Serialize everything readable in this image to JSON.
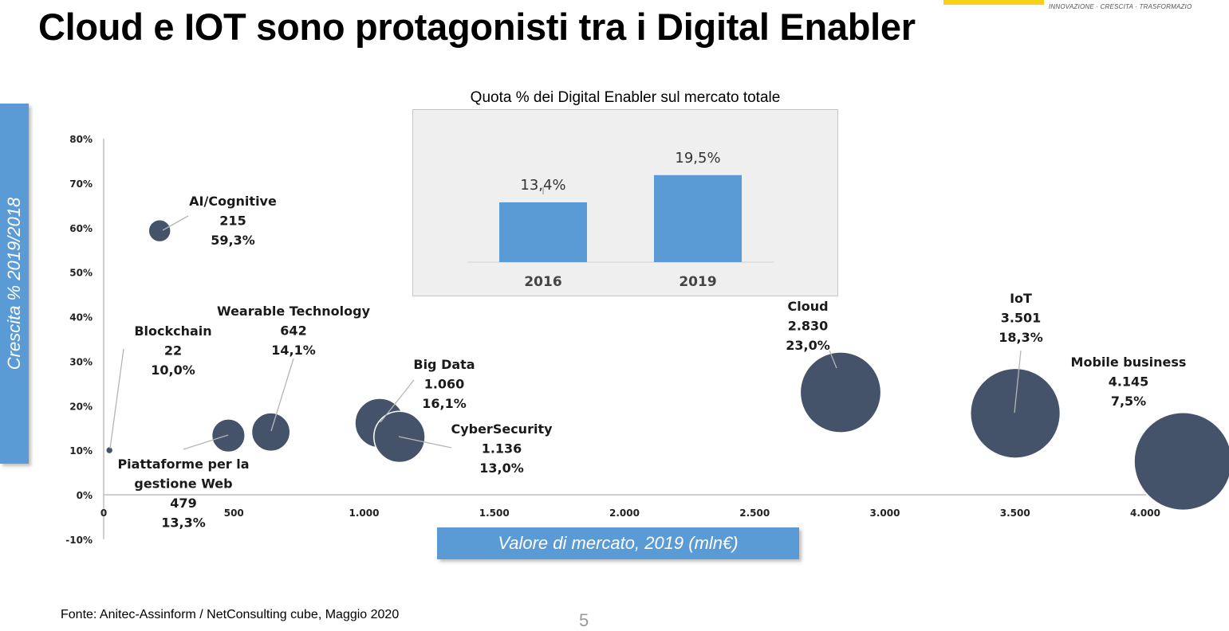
{
  "page_title": "Cloud e IOT sono protagonisti tra i Digital Enabler",
  "logo_tagline": "INNOVAZIONE · CRESCITA · TRASFORMAZIO",
  "source": "Fonte: Anitec-Assinform / NetConsulting cube, Maggio  2020",
  "page_number": "5",
  "colors": {
    "bubble": "#44536a",
    "bar": "#5b9bd5",
    "label_box": "#5b9bd5"
  },
  "chart_data": [
    {
      "type": "scatter",
      "title": "",
      "xlabel": "Valore di mercato, 2019 (mln€)",
      "ylabel": "Crescita % 2019/2018",
      "xlim": [
        0,
        4000
      ],
      "ylim": [
        -10,
        80
      ],
      "x_ticks": [
        "0",
        "500",
        "1.000",
        "1.500",
        "2.000",
        "2.500",
        "3.000",
        "3.500",
        "4.000"
      ],
      "y_ticks": [
        "-10%",
        "0%",
        "10%",
        "20%",
        "30%",
        "40%",
        "50%",
        "60%",
        "70%",
        "80%"
      ],
      "points": [
        {
          "name": "AI/Cognitive",
          "value_label": "215",
          "growth_label": "59,3%",
          "x": 215,
          "y": 59.3
        },
        {
          "name": "Blockchain",
          "value_label": "22",
          "growth_label": "10,0%",
          "x": 22,
          "y": 10.0
        },
        {
          "name": "Piattaforme per la gestione Web",
          "name_lines": [
            "Piattaforme per la",
            "gestione Web"
          ],
          "value_label": "479",
          "growth_label": "13,3%",
          "x": 479,
          "y": 13.3
        },
        {
          "name": "Wearable Technology",
          "value_label": "642",
          "growth_label": "14,1%",
          "x": 642,
          "y": 14.1
        },
        {
          "name": "Big Data",
          "value_label": "1.060",
          "growth_label": "16,1%",
          "x": 1060,
          "y": 16.1
        },
        {
          "name": "CyberSecurity",
          "value_label": "1.136",
          "growth_label": "13,0%",
          "x": 1136,
          "y": 13.0
        },
        {
          "name": "Cloud",
          "value_label": "2.830",
          "growth_label": "23,0%",
          "x": 2830,
          "y": 23.0
        },
        {
          "name": "IoT",
          "value_label": "3.501",
          "growth_label": "18,3%",
          "x": 3501,
          "y": 18.3
        },
        {
          "name": "Mobile business",
          "value_label": "4.145",
          "growth_label": "7,5%",
          "x": 4145,
          "y": 7.5
        }
      ]
    },
    {
      "type": "bar",
      "title": "Quota % dei Digital Enabler sul mercato totale",
      "categories": [
        "2016",
        "2019"
      ],
      "values": [
        13.4,
        19.5
      ],
      "value_labels": [
        "13,4%",
        "19,5%"
      ]
    }
  ]
}
